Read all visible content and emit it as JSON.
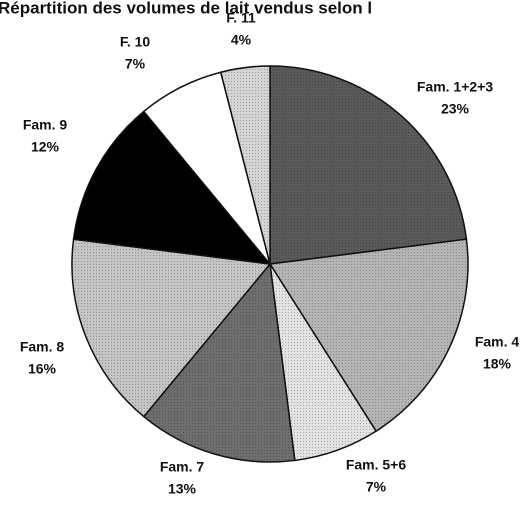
{
  "chart_data": {
    "type": "pie",
    "title": "Répartition des volumes de lait vendus selon l",
    "categories": [
      "Fam. 1+2+3",
      "Fam. 4",
      "Fam. 5+6",
      "Fam. 7",
      "Fam. 8",
      "Fam. 9",
      "F. 10",
      "F. 11"
    ],
    "values": [
      23,
      18,
      7,
      13,
      16,
      12,
      7,
      4
    ],
    "value_labels": [
      "23%",
      "18%",
      "7%",
      "13%",
      "16%",
      "12%",
      "7%",
      "4%"
    ],
    "colors": [
      "#5a5a5a",
      "#b4b4b4",
      "#e2e2e2",
      "#6e6e6e",
      "#c4c4c4",
      "#000000",
      "#ffffff",
      "#d4d4d4"
    ]
  }
}
